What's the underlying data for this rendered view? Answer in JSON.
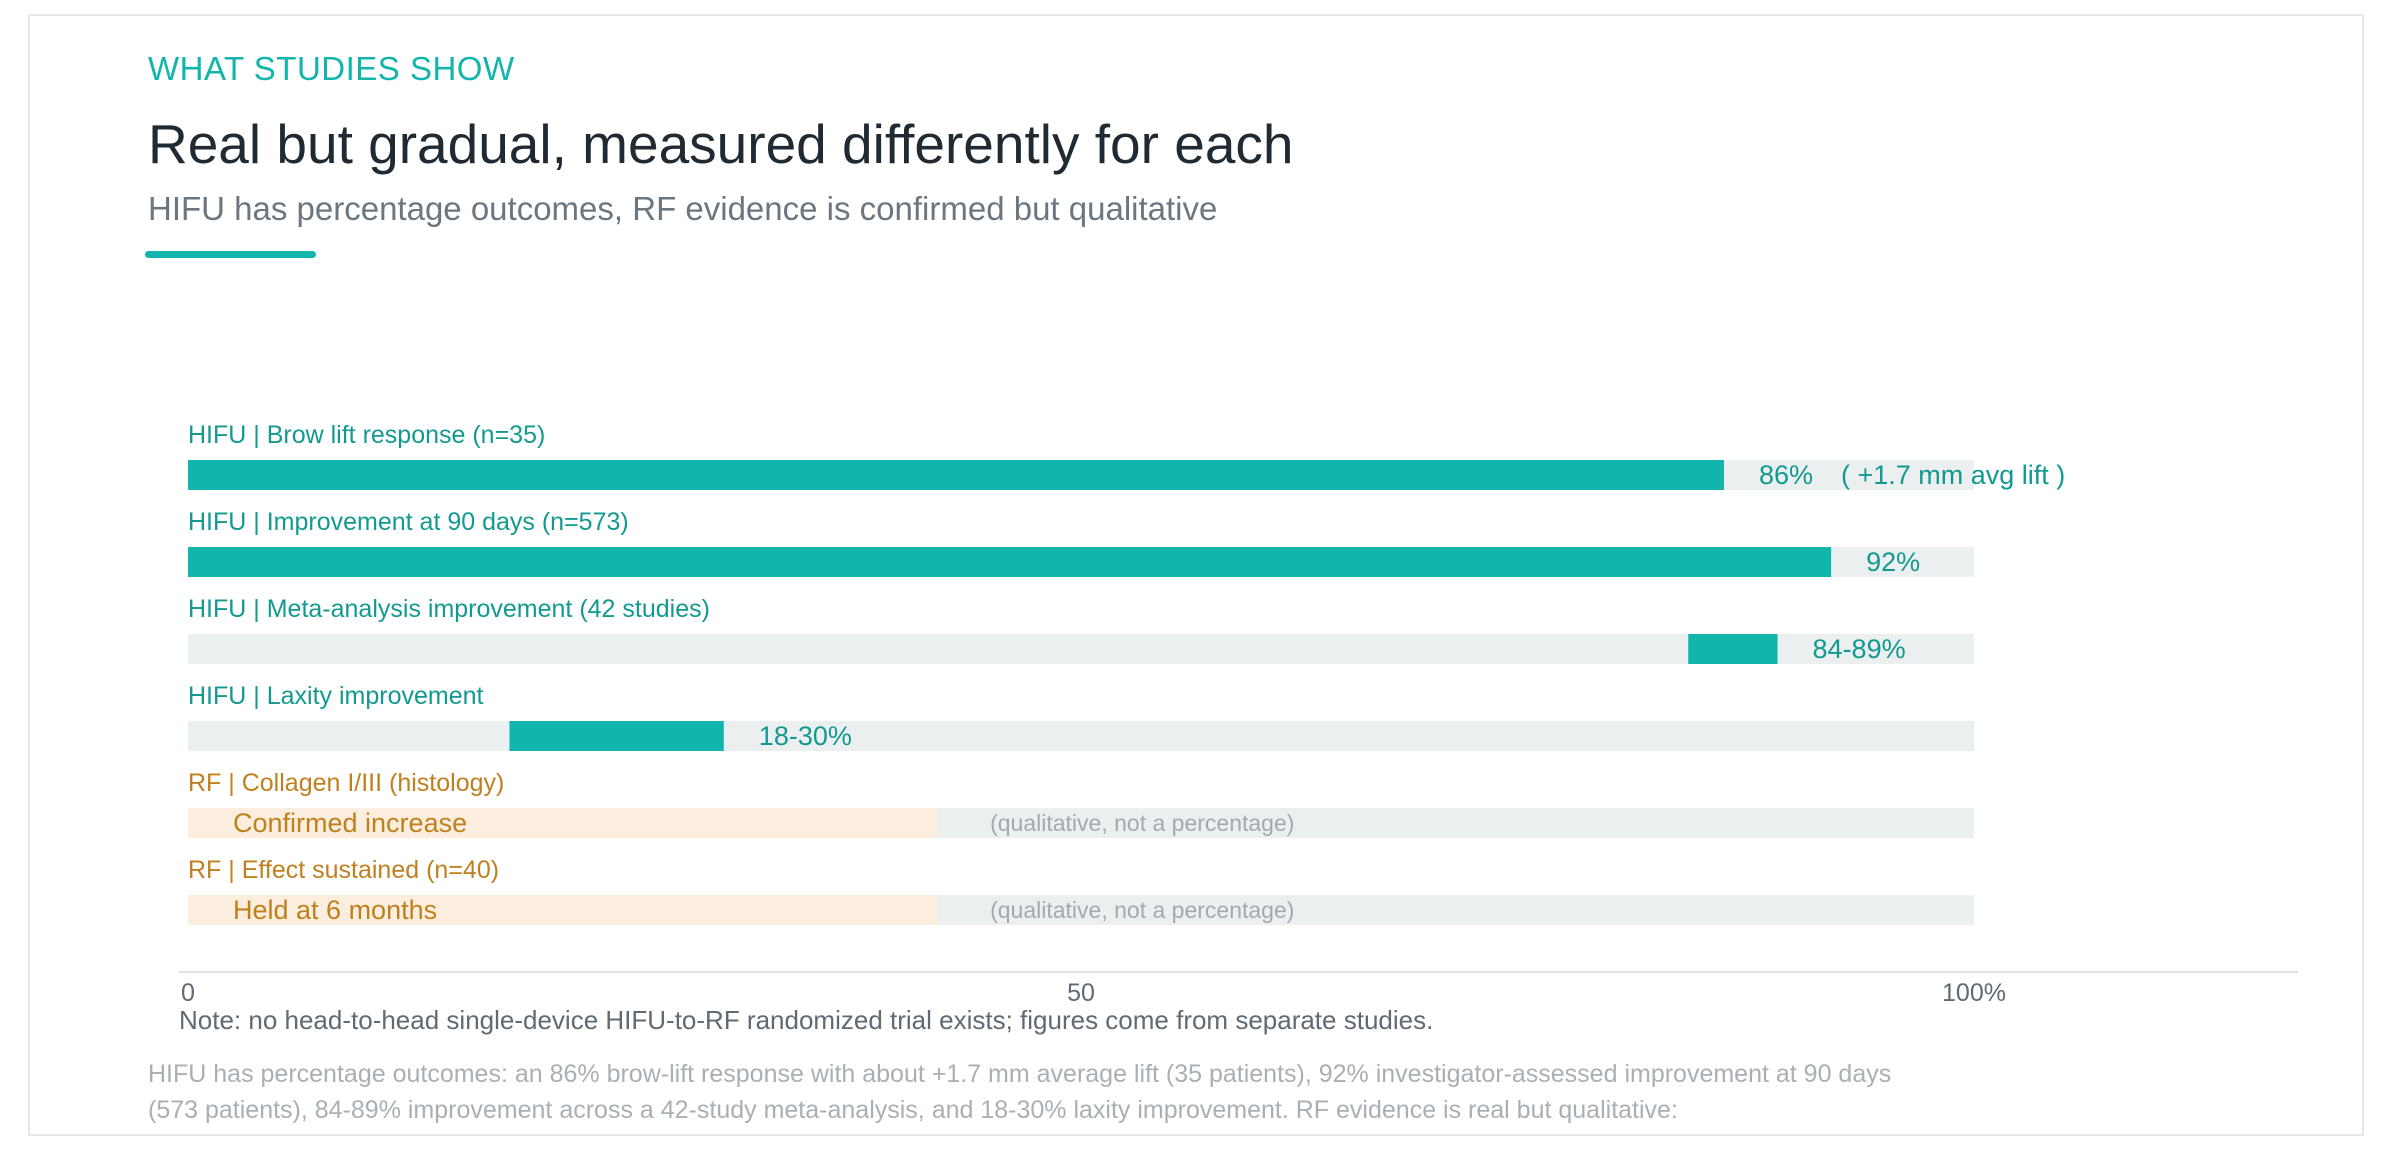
{
  "header": {
    "eyebrow": "WHAT STUDIES SHOW",
    "title": "Real but gradual, measured differently for each",
    "subtitle": "HIFU has percentage outcomes, RF evidence is confirmed but qualitative"
  },
  "colors": {
    "hifu": "#12b5ab",
    "hifu_label": "#129a90",
    "rf_label": "#c0801e",
    "rf_fill": "#fbeede",
    "track": "#eceff0",
    "qualitative_text": "#a3aaaf",
    "axis_text": "#5f6a72"
  },
  "chart_data": {
    "type": "bar",
    "orientation": "horizontal",
    "xlim": [
      0,
      100
    ],
    "ticks": [
      "0",
      "50",
      "100%"
    ],
    "tick_values": [
      0,
      50,
      100
    ],
    "items": [
      {
        "group": "HIFU",
        "label": "Brow lift response (n=35)",
        "kind": "value",
        "start": 0,
        "end": 86,
        "value_label": "86%",
        "annotation": "( +1.7 mm avg lift )"
      },
      {
        "group": "HIFU",
        "label": "Improvement at 90 days (n=573)",
        "kind": "value",
        "start": 0,
        "end": 92,
        "value_label": "92%"
      },
      {
        "group": "HIFU",
        "label": "Meta-analysis improvement (42 studies)",
        "kind": "range",
        "start": 84,
        "end": 89,
        "value_label": "84-89%"
      },
      {
        "group": "HIFU",
        "label": "Laxity improvement",
        "kind": "range",
        "start": 18,
        "end": 30,
        "value_label": "18-30%"
      },
      {
        "group": "RF",
        "label": "Collagen I/III (histology)",
        "kind": "qualitative",
        "inner_text": "Confirmed increase",
        "note": "(qualitative, not a percentage)"
      },
      {
        "group": "RF",
        "label": "Effect sustained (n=40)",
        "kind": "qualitative",
        "inner_text": "Held at 6 months",
        "note": "(qualitative, not a percentage)"
      }
    ]
  },
  "footer": {
    "note": "Note: no head-to-head single-device HIFU-to-RF randomized trial exists; figures come from separate studies.",
    "description": "HIFU has percentage outcomes: an 86% brow-lift response with about +1.7 mm average lift (35 patients), 92% investigator-assessed improvement at 90 days (573 patients), 84-89% improvement across a 42-study meta-analysis, and 18-30% laxity improvement. RF evidence is real but qualitative:"
  }
}
